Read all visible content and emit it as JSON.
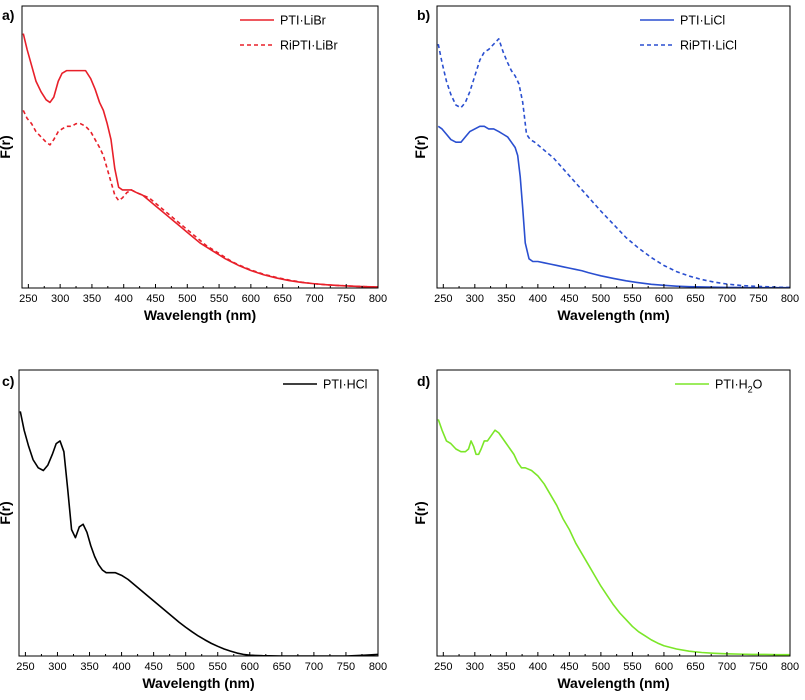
{
  "chart_data": [
    {
      "panel": "a)",
      "type": "line",
      "xlabel": "Wavelength (nm)",
      "ylabel": "F(r)",
      "xlim": [
        240,
        800
      ],
      "ylim": [
        0,
        1
      ],
      "xticks": [
        "250",
        "300",
        "350",
        "400",
        "450",
        "500",
        "550",
        "600",
        "650",
        "700",
        "750",
        "800"
      ],
      "legend_position": "top-right",
      "series": [
        {
          "name": "PTI·LiBr",
          "color": "#e8202a",
          "style": "solid",
          "x": [
            242,
            248,
            255,
            262,
            270,
            278,
            284,
            290,
            297,
            303,
            310,
            318,
            325,
            332,
            340,
            348,
            355,
            362,
            368,
            374,
            380,
            386,
            392,
            398,
            405,
            412,
            420,
            430,
            440,
            450,
            460,
            470,
            480,
            490,
            500,
            510,
            520,
            530,
            540,
            550,
            560,
            570,
            580,
            590,
            600,
            620,
            640,
            660,
            680,
            700,
            720,
            740,
            760,
            780,
            800
          ],
          "y": [
            0.96,
            0.9,
            0.84,
            0.78,
            0.74,
            0.71,
            0.7,
            0.72,
            0.78,
            0.81,
            0.82,
            0.82,
            0.82,
            0.82,
            0.82,
            0.79,
            0.75,
            0.7,
            0.67,
            0.62,
            0.56,
            0.45,
            0.38,
            0.37,
            0.37,
            0.37,
            0.36,
            0.35,
            0.33,
            0.31,
            0.29,
            0.27,
            0.25,
            0.23,
            0.21,
            0.19,
            0.17,
            0.155,
            0.14,
            0.125,
            0.11,
            0.098,
            0.086,
            0.076,
            0.066,
            0.05,
            0.038,
            0.028,
            0.021,
            0.016,
            0.012,
            0.009,
            0.007,
            0.005,
            0.004
          ]
        },
        {
          "name": "RiPTI·LiBr",
          "color": "#e8202a",
          "style": "dashed",
          "x": [
            242,
            248,
            255,
            262,
            270,
            278,
            284,
            290,
            297,
            303,
            310,
            318,
            325,
            332,
            340,
            348,
            355,
            362,
            368,
            374,
            380,
            386,
            392,
            398,
            405,
            412,
            420,
            430,
            440,
            450,
            460,
            470,
            480,
            490,
            500,
            510,
            520,
            530,
            540,
            550,
            560,
            570,
            580,
            590,
            600,
            620,
            640,
            660,
            680,
            700,
            720,
            740,
            760,
            780,
            800
          ],
          "y": [
            0.67,
            0.64,
            0.62,
            0.59,
            0.57,
            0.55,
            0.54,
            0.56,
            0.59,
            0.6,
            0.61,
            0.61,
            0.62,
            0.62,
            0.61,
            0.59,
            0.56,
            0.53,
            0.5,
            0.45,
            0.4,
            0.35,
            0.33,
            0.34,
            0.36,
            0.37,
            0.36,
            0.35,
            0.34,
            0.32,
            0.3,
            0.28,
            0.26,
            0.24,
            0.22,
            0.2,
            0.18,
            0.16,
            0.145,
            0.13,
            0.115,
            0.1,
            0.088,
            0.078,
            0.068,
            0.052,
            0.04,
            0.03,
            0.022,
            0.016,
            0.012,
            0.009,
            0.007,
            0.005,
            0.004
          ]
        }
      ]
    },
    {
      "panel": "b)",
      "type": "line",
      "xlabel": "Wavelength (nm)",
      "ylabel": "F(r)",
      "xlim": [
        240,
        800
      ],
      "ylim": [
        0,
        1
      ],
      "xticks": [
        "250",
        "300",
        "350",
        "400",
        "450",
        "500",
        "550",
        "600",
        "650",
        "700",
        "750",
        "800"
      ],
      "legend_position": "top-right",
      "series": [
        {
          "name": "PTI·LiCl",
          "color": "#2a4fd0",
          "style": "solid",
          "x": [
            242,
            248,
            255,
            262,
            270,
            278,
            285,
            292,
            300,
            308,
            315,
            322,
            330,
            338,
            345,
            352,
            358,
            364,
            368,
            372,
            376,
            380,
            386,
            392,
            400,
            410,
            420,
            430,
            440,
            450,
            460,
            470,
            480,
            490,
            500,
            520,
            540,
            560,
            580,
            600,
            620,
            640,
            660,
            680,
            700,
            720,
            740,
            760,
            780,
            800
          ],
          "y": [
            0.61,
            0.6,
            0.58,
            0.56,
            0.55,
            0.55,
            0.57,
            0.59,
            0.6,
            0.61,
            0.61,
            0.6,
            0.6,
            0.59,
            0.58,
            0.57,
            0.55,
            0.53,
            0.5,
            0.42,
            0.3,
            0.17,
            0.11,
            0.1,
            0.1,
            0.095,
            0.09,
            0.085,
            0.08,
            0.075,
            0.07,
            0.065,
            0.058,
            0.052,
            0.046,
            0.036,
            0.027,
            0.02,
            0.014,
            0.01,
            0.007,
            0.005,
            0.004,
            0.003,
            0.002,
            0.002,
            0.001,
            0.001,
            0.001,
            0.001
          ]
        },
        {
          "name": "RiPTI·LiCl",
          "color": "#2a4fd0",
          "style": "dashed",
          "x": [
            242,
            248,
            255,
            262,
            270,
            278,
            285,
            292,
            300,
            308,
            315,
            322,
            330,
            338,
            345,
            352,
            358,
            364,
            370,
            376,
            382,
            388,
            395,
            405,
            415,
            425,
            440,
            455,
            470,
            485,
            500,
            520,
            540,
            560,
            580,
            600,
            620,
            640,
            660,
            680,
            700,
            720,
            740,
            760,
            780,
            800
          ],
          "y": [
            0.92,
            0.85,
            0.78,
            0.73,
            0.69,
            0.68,
            0.7,
            0.74,
            0.8,
            0.86,
            0.89,
            0.9,
            0.92,
            0.94,
            0.89,
            0.85,
            0.82,
            0.8,
            0.77,
            0.7,
            0.58,
            0.56,
            0.55,
            0.53,
            0.51,
            0.49,
            0.45,
            0.41,
            0.37,
            0.33,
            0.29,
            0.24,
            0.19,
            0.15,
            0.115,
            0.085,
            0.062,
            0.045,
            0.032,
            0.022,
            0.015,
            0.01,
            0.007,
            0.005,
            0.003,
            0.002
          ]
        }
      ]
    },
    {
      "panel": "c)",
      "type": "line",
      "xlabel": "Wavelength (nm)",
      "ylabel": "F(r)",
      "xlim": [
        240,
        800
      ],
      "ylim": [
        0,
        1
      ],
      "xticks": [
        "250",
        "300",
        "350",
        "400",
        "450",
        "500",
        "550",
        "600",
        "650",
        "700",
        "750",
        "800"
      ],
      "legend_position": "top-right",
      "series": [
        {
          "name": "PTI·HCl",
          "color": "#000000",
          "style": "solid",
          "x": [
            242,
            248,
            255,
            262,
            270,
            278,
            285,
            292,
            298,
            304,
            310,
            316,
            322,
            328,
            334,
            340,
            346,
            352,
            358,
            364,
            370,
            376,
            382,
            390,
            400,
            410,
            420,
            430,
            440,
            450,
            460,
            470,
            480,
            490,
            500,
            510,
            520,
            530,
            540,
            550,
            560,
            570,
            580,
            590,
            600,
            620,
            650,
            700,
            750,
            780,
            800
          ],
          "y": [
            0.91,
            0.84,
            0.78,
            0.73,
            0.7,
            0.69,
            0.71,
            0.75,
            0.79,
            0.8,
            0.76,
            0.62,
            0.47,
            0.44,
            0.48,
            0.49,
            0.46,
            0.41,
            0.37,
            0.34,
            0.32,
            0.31,
            0.31,
            0.31,
            0.3,
            0.285,
            0.265,
            0.245,
            0.225,
            0.205,
            0.185,
            0.165,
            0.145,
            0.125,
            0.107,
            0.09,
            0.074,
            0.06,
            0.047,
            0.036,
            0.026,
            0.018,
            0.011,
            0.006,
            0.003,
            0.001,
            0.0,
            0.0,
            0.0,
            0.003,
            0.006
          ]
        }
      ]
    },
    {
      "panel": "d)",
      "type": "line",
      "xlabel": "Wavelength (nm)",
      "ylabel": "F(r)",
      "xlim": [
        240,
        800
      ],
      "ylim": [
        0,
        1
      ],
      "xticks": [
        "250",
        "300",
        "350",
        "400",
        "450",
        "500",
        "550",
        "600",
        "650",
        "700",
        "750",
        "800"
      ],
      "legend_position": "top-right",
      "series": [
        {
          "name": "PTI·H2O",
          "color": "#7be628",
          "style": "solid",
          "x": [
            242,
            248,
            255,
            262,
            270,
            278,
            285,
            290,
            294,
            298,
            302,
            306,
            310,
            315,
            320,
            326,
            332,
            338,
            344,
            350,
            356,
            362,
            368,
            374,
            380,
            390,
            400,
            410,
            420,
            430,
            440,
            450,
            460,
            470,
            480,
            490,
            500,
            510,
            520,
            530,
            540,
            550,
            560,
            570,
            580,
            590,
            600,
            620,
            640,
            660,
            680,
            700,
            720,
            740,
            760,
            780,
            800
          ],
          "y": [
            0.88,
            0.84,
            0.8,
            0.79,
            0.77,
            0.76,
            0.76,
            0.77,
            0.8,
            0.78,
            0.75,
            0.75,
            0.77,
            0.8,
            0.8,
            0.82,
            0.84,
            0.83,
            0.81,
            0.79,
            0.77,
            0.75,
            0.72,
            0.7,
            0.7,
            0.69,
            0.67,
            0.64,
            0.6,
            0.56,
            0.51,
            0.47,
            0.42,
            0.38,
            0.34,
            0.3,
            0.26,
            0.225,
            0.19,
            0.16,
            0.135,
            0.11,
            0.09,
            0.075,
            0.06,
            0.048,
            0.038,
            0.026,
            0.018,
            0.013,
            0.01,
            0.008,
            0.007,
            0.006,
            0.006,
            0.005,
            0.005
          ]
        }
      ]
    }
  ]
}
